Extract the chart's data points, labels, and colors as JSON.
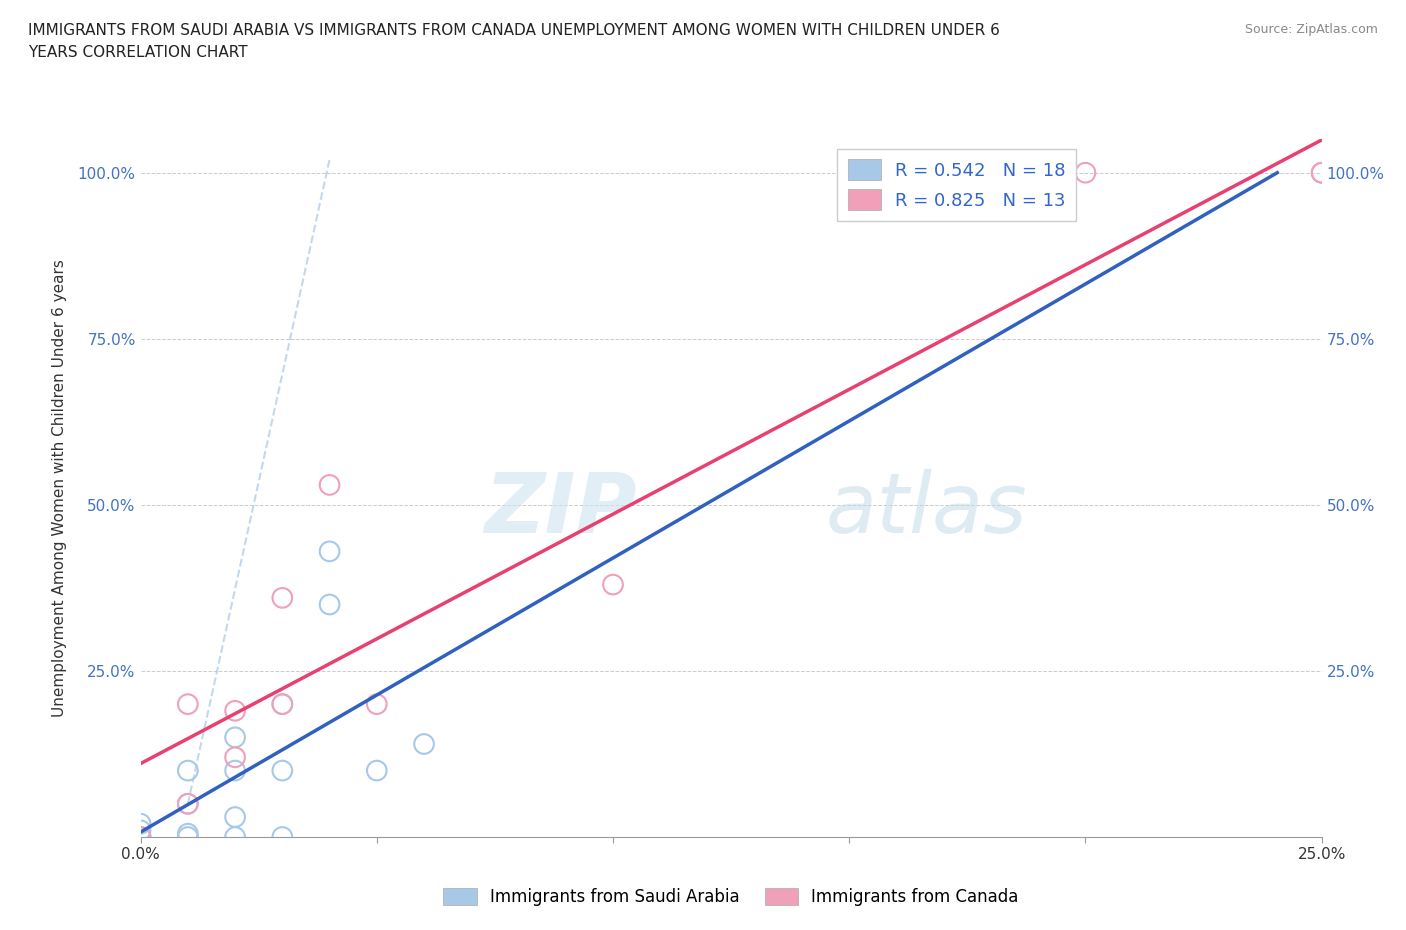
{
  "title_line1": "IMMIGRANTS FROM SAUDI ARABIA VS IMMIGRANTS FROM CANADA UNEMPLOYMENT AMONG WOMEN WITH CHILDREN UNDER 6",
  "title_line2": "YEARS CORRELATION CHART",
  "source": "Source: ZipAtlas.com",
  "ylabel": "Unemployment Among Women with Children Under 6 years",
  "watermark_zip": "ZIP",
  "watermark_atlas": "atlas",
  "r_saudi": 0.542,
  "n_saudi": 18,
  "r_canada": 0.825,
  "n_canada": 13,
  "color_saudi": "#a8c8e8",
  "color_canada": "#f0a0b8",
  "line_color_saudi": "#3060c0",
  "line_color_canada": "#e84070",
  "legend_text_color": "#3366cc",
  "saudi_x": [
    0.0,
    0.0,
    0.0,
    0.001,
    0.001,
    0.001,
    0.001,
    0.002,
    0.002,
    0.002,
    0.002,
    0.003,
    0.003,
    0.003,
    0.004,
    0.004,
    0.005,
    0.006
  ],
  "saudi_y": [
    0.0,
    0.01,
    0.02,
    0.0,
    0.005,
    0.05,
    0.1,
    0.0,
    0.03,
    0.1,
    0.15,
    0.0,
    0.1,
    0.2,
    0.35,
    0.43,
    0.1,
    0.14
  ],
  "canada_x": [
    0.0,
    0.001,
    0.001,
    0.002,
    0.002,
    0.003,
    0.003,
    0.004,
    0.005,
    0.01,
    0.02,
    0.025,
    0.025
  ],
  "canada_y": [
    0.0,
    0.05,
    0.2,
    0.12,
    0.19,
    0.2,
    0.36,
    0.53,
    0.2,
    0.38,
    1.0,
    1.0,
    1.0
  ],
  "xlim": [
    0.0,
    0.025
  ],
  "ylim": [
    0.0,
    1.05
  ],
  "background_color": "#ffffff",
  "grid_color": "#cccccc"
}
